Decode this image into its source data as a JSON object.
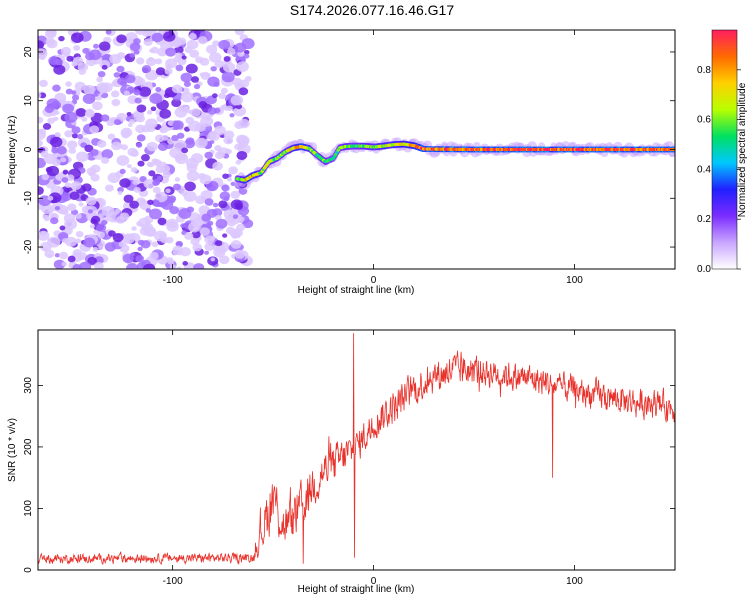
{
  "title": "S174.2026.077.16.46.G17",
  "chart_data": [
    {
      "type": "heatmap",
      "xlabel": "Height of straight line (km)",
      "ylabel": "Frequency (Hz)",
      "xlim": [
        -167,
        150
      ],
      "ylim": [
        -24.5,
        24.5
      ],
      "xticks": [
        -100,
        0,
        100
      ],
      "yticks": [
        -20,
        -10,
        0,
        10,
        20
      ],
      "colorbar": {
        "label": "Normalized spectral amplitude",
        "range": [
          0,
          0.96
        ],
        "ticks": [
          0.0,
          0.2,
          0.4,
          0.6,
          0.8
        ],
        "colors": [
          "#ffffff",
          "#c9a6ff",
          "#7b2cff",
          "#2020ff",
          "#00c8ff",
          "#00e060",
          "#b8ff00",
          "#ffd000",
          "#ff6a00",
          "#ff1e60"
        ]
      },
      "noise_region": {
        "x_range": [
          -167,
          -65
        ],
        "freq_range": [
          -24.5,
          24.5
        ],
        "amplitude": 0.12
      },
      "signal_track": {
        "x": [
          -68,
          -64,
          -60,
          -56,
          -52,
          -48,
          -44,
          -40,
          -36,
          -32,
          -28,
          -24,
          -20,
          -17,
          -14,
          -10,
          -5,
          0,
          5,
          10,
          15,
          20,
          25,
          50,
          100,
          150
        ],
        "freq": [
          -6.0,
          -6.3,
          -5.3,
          -4.8,
          -2.5,
          -1.8,
          -0.5,
          0.3,
          0.6,
          0.2,
          -1.2,
          -2.5,
          -1.8,
          0.3,
          0.6,
          0.7,
          0.7,
          0.5,
          0.7,
          1.0,
          1.1,
          0.8,
          0.1,
          0.0,
          0.0,
          0.0
        ],
        "amplitude": [
          0.55,
          0.75,
          0.8,
          0.65,
          0.7,
          0.6,
          0.65,
          0.75,
          0.85,
          0.7,
          0.55,
          0.6,
          0.5,
          0.6,
          0.65,
          0.55,
          0.6,
          0.65,
          0.7,
          0.7,
          0.75,
          0.8,
          0.9,
          0.93,
          0.93,
          0.92
        ]
      }
    },
    {
      "type": "line",
      "xlabel": "Height of straight line (km)",
      "ylabel": "SNR (10 * v/v)",
      "xlim": [
        -167,
        150
      ],
      "ylim": [
        0,
        390
      ],
      "xticks": [
        -100,
        0,
        100
      ],
      "yticks": [
        0,
        100,
        200,
        300
      ],
      "series": [
        {
          "name": "SNR",
          "color": "#e8322b",
          "envelope_x": [
            -167,
            -60,
            -53,
            -50,
            -45,
            -40,
            -35,
            -30,
            -25,
            -20,
            -15,
            -10,
            -5,
            0,
            10,
            20,
            30,
            40,
            50,
            60,
            70,
            80,
            90,
            100,
            110,
            120,
            130,
            140,
            150
          ],
          "envelope_mean": [
            18,
            20,
            90,
            120,
            70,
            80,
            110,
            140,
            160,
            170,
            185,
            195,
            215,
            240,
            265,
            295,
            315,
            325,
            325,
            320,
            315,
            310,
            300,
            292,
            285,
            278,
            272,
            268,
            265
          ],
          "envelope_spread": [
            9,
            10,
            55,
            60,
            45,
            50,
            45,
            45,
            45,
            40,
            40,
            35,
            35,
            35,
            35,
            35,
            35,
            35,
            35,
            30,
            30,
            30,
            30,
            30,
            30,
            30,
            30,
            30,
            30
          ],
          "spikes": [
            {
              "x": -10,
              "y": 385
            },
            {
              "x": -9.5,
              "y": 20
            },
            {
              "x": -35,
              "y": 10
            },
            {
              "x": 89,
              "y": 150
            }
          ]
        }
      ]
    }
  ]
}
